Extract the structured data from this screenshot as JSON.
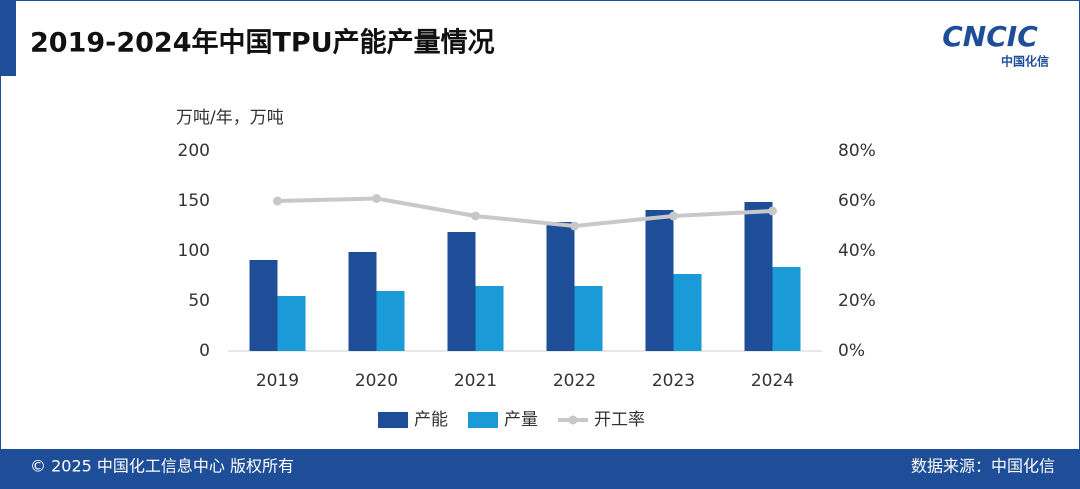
{
  "chart_data": {
    "type": "bar",
    "title": "2019-2024年中国TPU产能产量情况",
    "y_label": "万吨/年，万吨",
    "categories": [
      "2019",
      "2020",
      "2021",
      "2022",
      "2023",
      "2024"
    ],
    "series": [
      {
        "name": "产能",
        "color": "#1f4e99",
        "values": [
          91,
          99,
          119,
          129,
          141,
          149
        ]
      },
      {
        "name": "产量",
        "color": "#1a9ad6",
        "values": [
          55,
          60,
          65,
          65,
          77,
          84
        ]
      },
      {
        "name": "开工率",
        "color": "#c8c8c8",
        "axis": "y2",
        "values": [
          60,
          61,
          54,
          50,
          54,
          56
        ]
      }
    ],
    "ylim": [
      0,
      200
    ],
    "yticks": [
      0,
      50,
      100,
      150,
      200
    ],
    "y2lim": [
      0,
      80
    ],
    "y2ticks": [
      {
        "value": 0,
        "label": "0%"
      },
      {
        "value": 20,
        "label": "20%"
      },
      {
        "value": 40,
        "label": "40%"
      },
      {
        "value": 60,
        "label": "60%"
      },
      {
        "value": 80,
        "label": "80%"
      }
    ],
    "grid": false,
    "legend": "bottom"
  },
  "header": {
    "logo": "CNCIC",
    "logo_sub": "中国化信"
  },
  "footer": {
    "copyright": "© 2025 中国化工信息中心  版权所有",
    "source": "数据来源：中国化信"
  }
}
